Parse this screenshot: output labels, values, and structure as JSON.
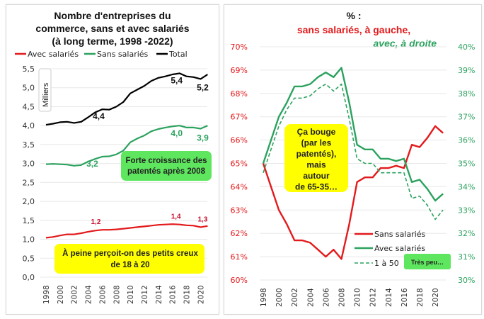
{
  "chart_data": [
    {
      "type": "line",
      "title": [
        "Nombre d'entreprises du",
        "commerce, sans et avec salariés",
        "(à long terme, 1998 -2022)"
      ],
      "ylabel": "Milliers",
      "ylim": [
        0,
        5.5
      ],
      "yticks": [
        "0,0",
        "0,5",
        "1,0",
        "1,5",
        "2,0",
        "2,5",
        "3,0",
        "3,5",
        "4,0",
        "4,5",
        "5,0",
        "5,5"
      ],
      "xtick_labels": [
        "1998",
        "2000",
        "2002",
        "2004",
        "2006",
        "2008",
        "2010",
        "2012",
        "2014",
        "2016",
        "2018",
        "2020"
      ],
      "x": [
        1998,
        1999,
        2000,
        2001,
        2002,
        2003,
        2004,
        2005,
        2006,
        2007,
        2008,
        2009,
        2010,
        2011,
        2012,
        2013,
        2014,
        2015,
        2016,
        2017,
        2018,
        2019,
        2020,
        2021
      ],
      "grid": true,
      "legend_position": "top",
      "series": [
        {
          "name": "Avec salariés",
          "color": "#e31a1c",
          "values": [
            1.04,
            1.06,
            1.1,
            1.13,
            1.13,
            1.16,
            1.2,
            1.23,
            1.25,
            1.25,
            1.26,
            1.28,
            1.3,
            1.32,
            1.34,
            1.36,
            1.38,
            1.39,
            1.4,
            1.39,
            1.37,
            1.36,
            1.32,
            1.35
          ]
        },
        {
          "name": "Sans salariés",
          "color": "#2ca25f",
          "values": [
            2.98,
            2.99,
            2.98,
            2.97,
            2.94,
            2.96,
            3.05,
            3.12,
            3.18,
            3.19,
            3.24,
            3.34,
            3.56,
            3.66,
            3.74,
            3.85,
            3.91,
            3.95,
            3.98,
            4.0,
            3.95,
            3.95,
            3.92,
            4.0
          ]
        },
        {
          "name": "Total",
          "color": "#000000",
          "values": [
            4.02,
            4.05,
            4.09,
            4.1,
            4.07,
            4.1,
            4.22,
            4.35,
            4.43,
            4.42,
            4.5,
            4.62,
            4.85,
            4.95,
            5.05,
            5.18,
            5.26,
            5.3,
            5.35,
            5.38,
            5.3,
            5.28,
            5.23,
            5.35
          ]
        }
      ],
      "data_labels": [
        {
          "series": "Total",
          "x": 2006,
          "text": "4,4"
        },
        {
          "series": "Total",
          "x": 2017,
          "text": "5,4"
        },
        {
          "series": "Total",
          "x": 2020,
          "text": "5,2"
        },
        {
          "series": "Sans salariés",
          "x": 2006,
          "text": "3,2"
        },
        {
          "series": "Sans salariés",
          "x": 2017,
          "text": "4,0"
        },
        {
          "series": "Sans salariés",
          "x": 2020,
          "text": "3,9"
        },
        {
          "series": "Avec salariés",
          "x": 2006,
          "text": "1,2"
        },
        {
          "series": "Avec salariés",
          "x": 2017,
          "text": "1,4"
        },
        {
          "series": "Avec salariés",
          "x": 2020,
          "text": "1,3"
        }
      ],
      "annotations": [
        {
          "text": [
            "Forte croissance des",
            "patentés après 2008"
          ],
          "fill": "#5ee65e"
        },
        {
          "text": [
            "À peine perçoit-on des petits creux",
            "de 18 à 20"
          ],
          "fill": "#ffff00"
        }
      ]
    },
    {
      "type": "line",
      "title": [
        "% :",
        "sans salariés, à gauche,",
        "avec, à droite"
      ],
      "ylim_left": [
        60,
        70
      ],
      "ylim_right": [
        30,
        40
      ],
      "yticks_left": [
        "60%",
        "61%",
        "62%",
        "63%",
        "64%",
        "65%",
        "66%",
        "67%",
        "68%",
        "69%",
        "70%"
      ],
      "yticks_right": [
        "30%",
        "31%",
        "32%",
        "33%",
        "34%",
        "35%",
        "36%",
        "37%",
        "38%",
        "39%",
        "40%"
      ],
      "xtick_labels": [
        "1998",
        "2000",
        "2002",
        "2004",
        "2006",
        "2008",
        "2010",
        "2012",
        "2014",
        "2016",
        "2018",
        "2020"
      ],
      "x": [
        1998,
        1999,
        2000,
        2001,
        2002,
        2003,
        2004,
        2005,
        2006,
        2007,
        2008,
        2009,
        2010,
        2011,
        2012,
        2013,
        2014,
        2015,
        2016,
        2017,
        2018,
        2019,
        2020,
        2021
      ],
      "grid": true,
      "legend_position": "bottom-right",
      "series": [
        {
          "name": "Sans salariés",
          "axis": "left",
          "color": "#e31a1c",
          "dash": false,
          "values": [
            65.0,
            64.0,
            63.0,
            62.4,
            61.7,
            61.7,
            61.6,
            61.3,
            61.0,
            61.3,
            60.9,
            62.4,
            64.2,
            64.4,
            64.4,
            64.8,
            64.8,
            64.9,
            64.8,
            65.8,
            65.7,
            66.1,
            66.6,
            66.3
          ]
        },
        {
          "name": "Avec salariés",
          "axis": "right",
          "color": "#2ca25f",
          "dash": false,
          "values": [
            35.0,
            36.0,
            37.0,
            37.6,
            38.3,
            38.3,
            38.4,
            38.7,
            38.9,
            38.7,
            39.1,
            37.6,
            35.8,
            35.6,
            35.6,
            35.2,
            35.2,
            35.1,
            35.2,
            34.2,
            34.3,
            33.9,
            33.4,
            33.7
          ]
        },
        {
          "name": "1 à 50",
          "axis": "right",
          "color": "#2ca25f",
          "dash": true,
          "values": [
            34.6,
            35.6,
            36.6,
            37.3,
            37.8,
            37.8,
            37.9,
            38.2,
            38.4,
            38.1,
            38.4,
            36.9,
            35.2,
            35.0,
            35.0,
            34.6,
            34.6,
            34.6,
            34.6,
            33.5,
            33.6,
            33.2,
            32.6,
            33.0
          ]
        }
      ],
      "annotations": [
        {
          "text": [
            "Ça bouge",
            "(par les",
            "patentés),",
            "mais",
            "autour",
            "de 65-35…"
          ],
          "fill": "#ffff00"
        },
        {
          "text": [
            "Très peu…"
          ],
          "fill": "#5ee65e"
        }
      ]
    }
  ]
}
